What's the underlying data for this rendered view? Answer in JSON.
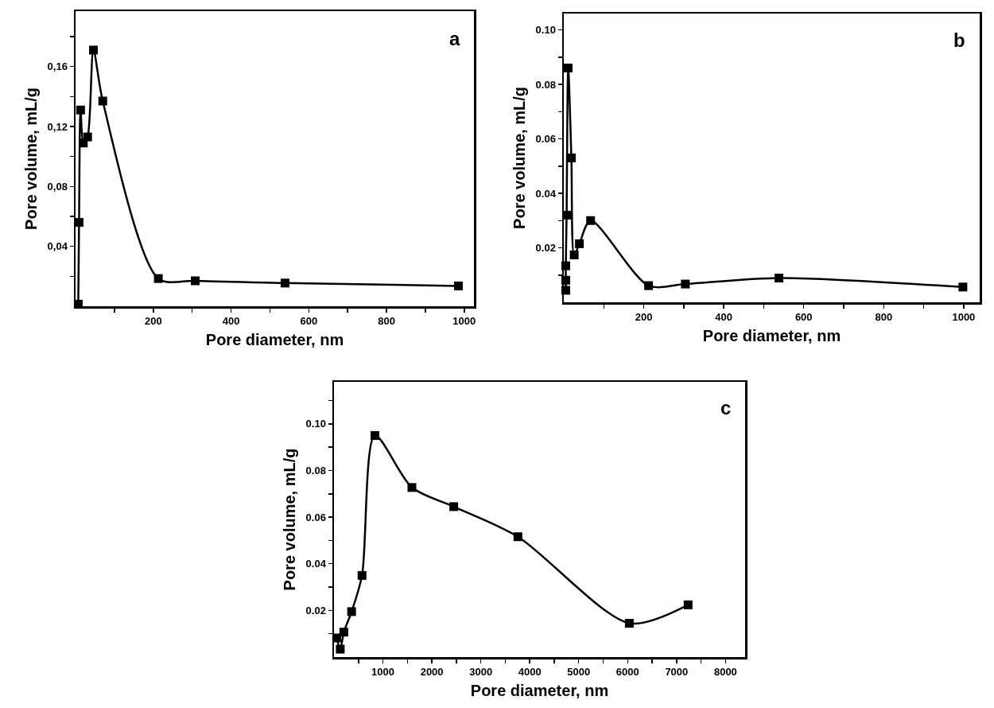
{
  "chart_data": [
    {
      "type": "line",
      "xlabel": "Pore diameter, nm",
      "ylabel": "Pore volume, mL/g",
      "annotations": [
        "a"
      ],
      "marker": "square",
      "line_style": "solid",
      "grid": false,
      "xlim": [
        0,
        1025
      ],
      "ylim": [
        0,
        0.197
      ],
      "xticks": [
        {
          "value": 100,
          "label": null
        },
        200,
        {
          "value": 300,
          "label": null
        },
        400,
        {
          "value": 500,
          "label": null
        },
        600,
        {
          "value": 700,
          "label": null
        },
        800,
        {
          "value": 900,
          "label": null
        },
        1000
      ],
      "yticks": [
        {
          "value": 0.02,
          "label": null
        },
        {
          "value": 0.04,
          "label": "0,04"
        },
        {
          "value": 0.06,
          "label": null
        },
        {
          "value": 0.08,
          "label": "0,08"
        },
        {
          "value": 0.1,
          "label": null
        },
        {
          "value": 0.12,
          "label": "0,12"
        },
        {
          "value": 0.14,
          "label": null
        },
        {
          "value": 0.16,
          "label": "0,16"
        },
        {
          "value": 0.18,
          "label": null
        }
      ],
      "series": [
        {
          "color": "#000000",
          "x": [
            7,
            9,
            13,
            20,
            31,
            46,
            70,
            213,
            308,
            539,
            985
          ],
          "values": [
            0.0014,
            0.056,
            0.131,
            0.109,
            0.113,
            0.171,
            0.137,
            0.0185,
            0.017,
            0.0155,
            0.0136
          ]
        }
      ]
    },
    {
      "type": "line",
      "xlabel": "Pore diameter, nm",
      "ylabel": "Pore volume, mL/g",
      "annotations": [
        "b"
      ],
      "marker": "square",
      "line_style": "solid",
      "grid": false,
      "xlim": [
        0,
        1040
      ],
      "ylim": [
        0,
        0.106
      ],
      "xticks": [
        {
          "value": 100,
          "label": null
        },
        200,
        {
          "value": 300,
          "label": null
        },
        400,
        {
          "value": 500,
          "label": null
        },
        600,
        {
          "value": 700,
          "label": null
        },
        800,
        {
          "value": 900,
          "label": null
        },
        1000
      ],
      "yticks": [
        {
          "value": 0.01,
          "label": null
        },
        {
          "value": 0.02,
          "label": "0.02"
        },
        {
          "value": 0.03,
          "label": null
        },
        {
          "value": 0.04,
          "label": "0.04"
        },
        {
          "value": 0.05,
          "label": null
        },
        {
          "value": 0.06,
          "label": "0.06"
        },
        {
          "value": 0.07,
          "label": null
        },
        {
          "value": 0.08,
          "label": "0.08"
        },
        {
          "value": 0.09,
          "label": null
        },
        {
          "value": 0.1,
          "label": "0.10"
        }
      ],
      "series": [
        {
          "color": "#000000",
          "x": [
            5,
            5,
            5,
            7,
            11,
            19,
            26,
            39,
            67,
            212,
            304,
            538,
            998
          ],
          "values": [
            0.0044,
            0.0081,
            0.0134,
            0.032,
            0.086,
            0.053,
            0.0174,
            0.0215,
            0.03,
            0.0061,
            0.0067,
            0.0089,
            0.0056
          ]
        }
      ]
    },
    {
      "type": "line",
      "xlabel": "Pore diameter, nm",
      "ylabel": "Pore volume, mL/g",
      "annotations": [
        "c"
      ],
      "marker": "square",
      "line_style": "solid",
      "grid": false,
      "xlim": [
        0,
        8400
      ],
      "ylim": [
        0,
        0.118
      ],
      "xticks": [
        {
          "value": 500,
          "label": null
        },
        1000,
        {
          "value": 1500,
          "label": null
        },
        2000,
        {
          "value": 2500,
          "label": null
        },
        3000,
        {
          "value": 3500,
          "label": null
        },
        4000,
        {
          "value": 4500,
          "label": null
        },
        5000,
        {
          "value": 5500,
          "label": null
        },
        6000,
        {
          "value": 6500,
          "label": null
        },
        7000,
        {
          "value": 7500,
          "label": null
        },
        8000
      ],
      "yticks": [
        {
          "value": 0.01,
          "label": null
        },
        {
          "value": 0.02,
          "label": "0.02"
        },
        {
          "value": 0.03,
          "label": null
        },
        {
          "value": 0.04,
          "label": "0.04"
        },
        {
          "value": 0.05,
          "label": null
        },
        {
          "value": 0.06,
          "label": "0.06"
        },
        {
          "value": 0.07,
          "label": null
        },
        {
          "value": 0.08,
          "label": "0.08"
        },
        {
          "value": 0.09,
          "label": null
        },
        {
          "value": 0.1,
          "label": "0.10"
        },
        {
          "value": 0.11,
          "label": null
        }
      ],
      "series": [
        {
          "color": "#000000",
          "x": [
            55,
            128,
            201,
            360,
            573,
            836,
            1592,
            2447,
            3758,
            6034,
            7236
          ],
          "values": [
            0.0082,
            0.0034,
            0.0107,
            0.0195,
            0.035,
            0.095,
            0.0727,
            0.0645,
            0.0516,
            0.0145,
            0.0224
          ]
        }
      ]
    }
  ]
}
